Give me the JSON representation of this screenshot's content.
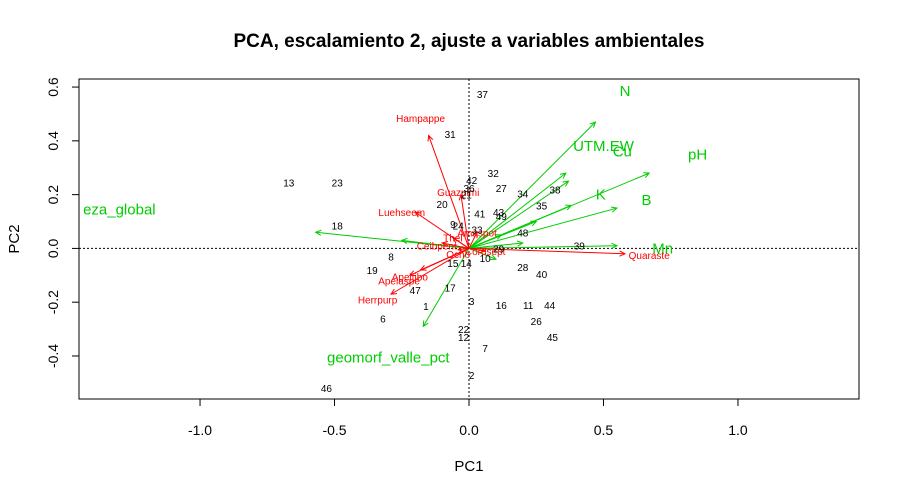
{
  "chart_data": {
    "type": "scatter",
    "title": "PCA, escalamiento 2, ajuste a variables ambientales",
    "xlabel": "PC1",
    "ylabel": "PC2",
    "xlim": [
      -1.45,
      1.45
    ],
    "ylim": [
      -0.56,
      0.63
    ],
    "xticks": [
      -1.0,
      -0.5,
      0.0,
      0.5,
      1.0
    ],
    "yticks": [
      -0.4,
      -0.2,
      0.0,
      0.2,
      0.4,
      0.6
    ],
    "xtick_labels": [
      "-1.0",
      "-0.5",
      "0.0",
      "0.5",
      "1.0"
    ],
    "ytick_labels": [
      "-0.4",
      "-0.2",
      "0.0",
      "0.2",
      "0.4",
      "0.6"
    ],
    "reference_lines": {
      "x": 0,
      "y": 0,
      "style": "dotted"
    },
    "colors": {
      "sites": "#000000",
      "species": "#ff0000",
      "environment": "#00cd00"
    },
    "sites": [
      {
        "label": "37",
        "x": 0.05,
        "y": 0.575
      },
      {
        "label": "31",
        "x": -0.07,
        "y": 0.425
      },
      {
        "label": "13",
        "x": -0.67,
        "y": 0.245
      },
      {
        "label": "23",
        "x": -0.49,
        "y": 0.245
      },
      {
        "label": "42",
        "x": 0.01,
        "y": 0.255
      },
      {
        "label": "32",
        "x": 0.09,
        "y": 0.28
      },
      {
        "label": "36",
        "x": 0.0,
        "y": 0.225
      },
      {
        "label": "27",
        "x": 0.12,
        "y": 0.225
      },
      {
        "label": "34",
        "x": 0.2,
        "y": 0.205
      },
      {
        "label": "38",
        "x": 0.32,
        "y": 0.22
      },
      {
        "label": "21",
        "x": -0.01,
        "y": 0.2
      },
      {
        "label": "20",
        "x": -0.1,
        "y": 0.165
      },
      {
        "label": "35",
        "x": 0.27,
        "y": 0.16
      },
      {
        "label": "41",
        "x": 0.04,
        "y": 0.13
      },
      {
        "label": "43",
        "x": 0.11,
        "y": 0.135
      },
      {
        "label": "49",
        "x": 0.12,
        "y": 0.12
      },
      {
        "label": "18",
        "x": -0.49,
        "y": 0.085
      },
      {
        "label": "9",
        "x": -0.06,
        "y": 0.09
      },
      {
        "label": "24",
        "x": -0.04,
        "y": 0.085
      },
      {
        "label": "33",
        "x": 0.03,
        "y": 0.07
      },
      {
        "label": "48",
        "x": 0.2,
        "y": 0.06
      },
      {
        "label": "8",
        "x": -0.29,
        "y": -0.03
      },
      {
        "label": "39",
        "x": 0.41,
        "y": 0.01
      },
      {
        "label": "29",
        "x": 0.11,
        "y": -0.0
      },
      {
        "label": "10",
        "x": 0.06,
        "y": -0.035
      },
      {
        "label": "15",
        "x": -0.06,
        "y": -0.055
      },
      {
        "label": "14",
        "x": -0.01,
        "y": -0.055
      },
      {
        "label": "19",
        "x": -0.36,
        "y": -0.08
      },
      {
        "label": "28",
        "x": 0.2,
        "y": -0.07
      },
      {
        "label": "40",
        "x": 0.27,
        "y": -0.095
      },
      {
        "label": "47",
        "x": -0.2,
        "y": -0.155
      },
      {
        "label": "17",
        "x": -0.07,
        "y": -0.145
      },
      {
        "label": "3",
        "x": 0.01,
        "y": -0.195
      },
      {
        "label": "16",
        "x": 0.12,
        "y": -0.21
      },
      {
        "label": "11",
        "x": 0.22,
        "y": -0.21
      },
      {
        "label": "44",
        "x": 0.3,
        "y": -0.21
      },
      {
        "label": "1",
        "x": -0.16,
        "y": -0.215
      },
      {
        "label": "6",
        "x": -0.32,
        "y": -0.26
      },
      {
        "label": "26",
        "x": 0.25,
        "y": -0.27
      },
      {
        "label": "22",
        "x": -0.02,
        "y": -0.3
      },
      {
        "label": "12",
        "x": -0.02,
        "y": -0.33
      },
      {
        "label": "45",
        "x": 0.31,
        "y": -0.33
      },
      {
        "label": "7",
        "x": 0.06,
        "y": -0.37
      },
      {
        "label": "2",
        "x": 0.01,
        "y": -0.47
      },
      {
        "label": "46",
        "x": -0.53,
        "y": -0.52
      }
    ],
    "species": [
      {
        "label": "Hampappe",
        "x": -0.15,
        "y": 0.42,
        "label_x": -0.18,
        "label_y": 0.485
      },
      {
        "label": "Guazulmi",
        "x": -0.03,
        "y": 0.2,
        "label_x": -0.04,
        "label_y": 0.21
      },
      {
        "label": "Luehseem",
        "x": -0.2,
        "y": 0.135,
        "label_x": -0.25,
        "label_y": 0.135
      },
      {
        "label": "Ceibpent",
        "x": -0.1,
        "y": 0.02,
        "label_x": -0.12,
        "label_y": 0.01
      },
      {
        "label": "Thel",
        "x": -0.06,
        "y": 0.04,
        "label_x": -0.06,
        "label_y": 0.04
      },
      {
        "label": "Ocho",
        "x": -0.04,
        "y": -0.005,
        "label_x": -0.04,
        "label_y": -0.02
      },
      {
        "label": "Apeitibo",
        "x": -0.18,
        "y": -0.08,
        "label_x": -0.22,
        "label_y": -0.105
      },
      {
        "label": "Apeiaspe",
        "x": -0.22,
        "y": -0.1,
        "label_x": -0.26,
        "label_y": -0.12
      },
      {
        "label": "Herrpurp",
        "x": -0.29,
        "y": -0.17,
        "label_x": -0.34,
        "label_y": -0.19
      },
      {
        "label": "Amaspot",
        "x": 0.03,
        "y": 0.06,
        "label_x": 0.03,
        "label_y": 0.06
      },
      {
        "label": "Cordsept",
        "x": 0.06,
        "y": -0.01,
        "label_x": 0.06,
        "label_y": -0.01
      },
      {
        "label": "Quaraste",
        "x": 0.58,
        "y": -0.02,
        "label_x": 0.67,
        "label_y": -0.025
      }
    ],
    "environment": [
      {
        "label": "N",
        "x": 0.47,
        "y": 0.47,
        "label_x": 0.58,
        "label_y": 0.585
      },
      {
        "label": "UTM.EW",
        "x": 0.36,
        "y": 0.28,
        "label_x": 0.5,
        "label_y": 0.38
      },
      {
        "label": "Cu",
        "x": 0.37,
        "y": 0.25,
        "label_x": 0.57,
        "label_y": 0.36
      },
      {
        "label": "pH",
        "x": 0.67,
        "y": 0.28,
        "label_x": 0.85,
        "label_y": 0.35
      },
      {
        "label": "K",
        "x": 0.38,
        "y": 0.16,
        "label_x": 0.49,
        "label_y": 0.2
      },
      {
        "label": "B",
        "x": 0.55,
        "y": 0.15,
        "label_x": 0.66,
        "label_y": 0.18
      },
      {
        "label": "Mn",
        "x": 0.55,
        "y": 0.01,
        "label_x": 0.72,
        "label_y": 0.0
      },
      {
        "label": "eza_global",
        "x": -0.57,
        "y": 0.06,
        "label_x": -1.3,
        "label_y": 0.145
      },
      {
        "label": "geomorf_valle_pct",
        "x": -0.17,
        "y": -0.29,
        "label_x": -0.3,
        "label_y": -0.405
      }
    ],
    "minor_env_arrows": [
      {
        "x": 0.12,
        "y": 0.05
      },
      {
        "x": 0.2,
        "y": 0.02
      },
      {
        "x": 0.25,
        "y": 0.1
      },
      {
        "x": -0.25,
        "y": 0.03
      },
      {
        "x": 0.1,
        "y": -0.04
      }
    ]
  }
}
